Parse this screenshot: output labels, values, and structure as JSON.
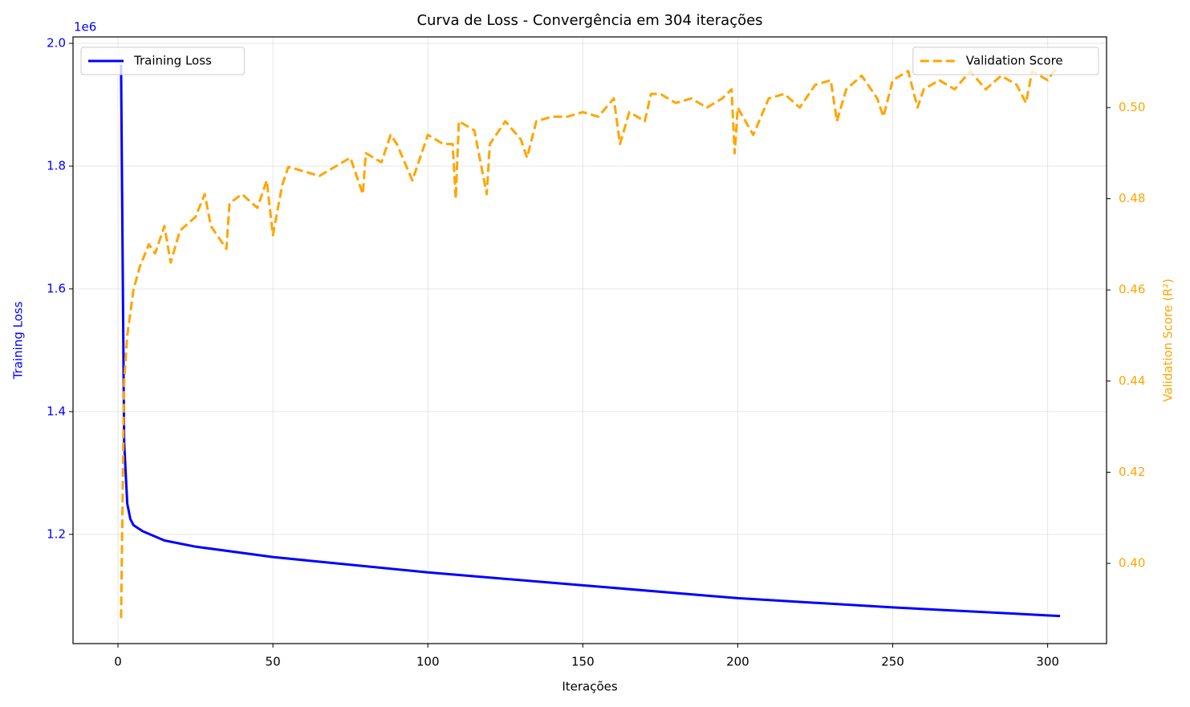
{
  "chart_data": {
    "type": "line",
    "title": "Curva de Loss - Convergência em 304 iterações",
    "xlabel": "Iterações",
    "ylabel": "Training Loss",
    "y2label": "Validation Score (R²)",
    "y_offset_label": "1e6",
    "xlim": [
      -14.5,
      319
    ],
    "xticks": [
      0,
      50,
      100,
      150,
      200,
      250,
      300
    ],
    "ylim": [
      1022000,
      2010500
    ],
    "yticks": [
      {
        "value": 1200000,
        "label": "1.2"
      },
      {
        "value": 1400000,
        "label": "1.4"
      },
      {
        "value": 1600000,
        "label": "1.6"
      },
      {
        "value": 1800000,
        "label": "1.8"
      },
      {
        "value": 2000000,
        "label": "2.0"
      }
    ],
    "y2lim": [
      0.3824,
      0.5155
    ],
    "y2ticks": [
      {
        "value": 0.4,
        "label": "0.40"
      },
      {
        "value": 0.42,
        "label": "0.42"
      },
      {
        "value": 0.44,
        "label": "0.44"
      },
      {
        "value": 0.46,
        "label": "0.46"
      },
      {
        "value": 0.48,
        "label": "0.48"
      },
      {
        "value": 0.5,
        "label": "0.50"
      }
    ],
    "grid": true,
    "series": [
      {
        "name": "Training Loss",
        "color": "#0000ff",
        "linestyle": "solid",
        "legend_loc": "upper left",
        "x": [
          1,
          2,
          3,
          4,
          5,
          8,
          15,
          25,
          50,
          100,
          150,
          200,
          250,
          300,
          304
        ],
        "values": [
          1965000,
          1350000,
          1250000,
          1225000,
          1215000,
          1205000,
          1190000,
          1180000,
          1163000,
          1138000,
          1117000,
          1096000,
          1081000,
          1068000,
          1067000
        ]
      },
      {
        "name": "Validation Score",
        "color": "#ffa500",
        "linestyle": "dashed",
        "legend_loc": "upper right",
        "axis": "y2",
        "x": [
          1,
          2,
          3,
          5,
          7,
          10,
          12,
          15,
          17,
          20,
          25,
          28,
          30,
          35,
          36,
          40,
          45,
          48,
          50,
          53,
          55,
          60,
          65,
          70,
          75,
          79,
          80,
          85,
          88,
          90,
          95,
          100,
          105,
          108,
          109,
          110,
          115,
          119,
          120,
          125,
          130,
          132,
          135,
          140,
          145,
          150,
          155,
          160,
          162,
          165,
          170,
          172,
          175,
          180,
          185,
          190,
          195,
          198,
          199,
          200,
          205,
          210,
          215,
          220,
          225,
          230,
          232,
          235,
          240,
          245,
          247,
          250,
          255,
          258,
          260,
          265,
          270,
          275,
          280,
          285,
          290,
          293,
          295,
          300,
          302,
          304
        ],
        "values": [
          0.388,
          0.44,
          0.45,
          0.46,
          0.465,
          0.47,
          0.468,
          0.474,
          0.466,
          0.473,
          0.476,
          0.481,
          0.474,
          0.469,
          0.479,
          0.481,
          0.478,
          0.484,
          0.472,
          0.483,
          0.487,
          0.486,
          0.485,
          0.487,
          0.489,
          0.481,
          0.49,
          0.488,
          0.494,
          0.492,
          0.484,
          0.494,
          0.492,
          0.492,
          0.48,
          0.497,
          0.495,
          0.481,
          0.492,
          0.497,
          0.493,
          0.489,
          0.497,
          0.498,
          0.498,
          0.499,
          0.498,
          0.502,
          0.492,
          0.499,
          0.497,
          0.503,
          0.503,
          0.501,
          0.502,
          0.5,
          0.502,
          0.504,
          0.49,
          0.5,
          0.494,
          0.502,
          0.503,
          0.5,
          0.505,
          0.506,
          0.497,
          0.504,
          0.507,
          0.502,
          0.498,
          0.506,
          0.508,
          0.5,
          0.504,
          0.506,
          0.504,
          0.508,
          0.504,
          0.507,
          0.505,
          0.501,
          0.508,
          0.506,
          0.508,
          0.508
        ]
      }
    ]
  }
}
